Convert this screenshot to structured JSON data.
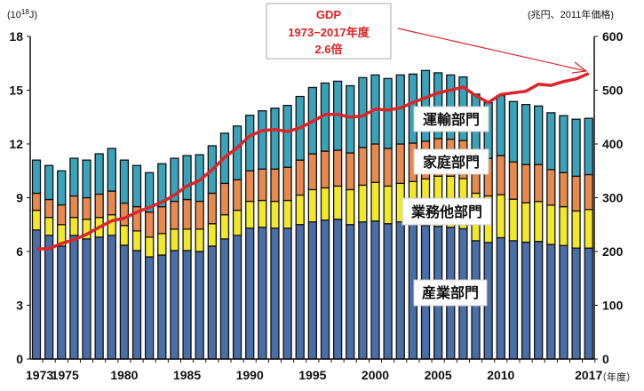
{
  "chart_data": {
    "type": "bar",
    "stacked": true,
    "left_unit": "(10",
    "left_unit_sup": "18",
    "left_unit_end": "J)",
    "right_unit": "(兆円、2011年価格)",
    "x_unit": "（年度）",
    "ylim": [
      0,
      18
    ],
    "yticks": [
      0,
      3,
      6,
      9,
      12,
      15,
      18
    ],
    "y2lim": [
      0,
      600
    ],
    "y2ticks": [
      0,
      100,
      200,
      300,
      400,
      500,
      600
    ],
    "xtick_labels": [
      "1973",
      "1975",
      "1980",
      "1985",
      "1990",
      "1995",
      "2000",
      "2005",
      "2010",
      "2017"
    ],
    "x": [
      1973,
      1974,
      1975,
      1976,
      1977,
      1978,
      1979,
      1980,
      1981,
      1982,
      1983,
      1984,
      1985,
      1986,
      1987,
      1988,
      1989,
      1990,
      1991,
      1992,
      1993,
      1994,
      1995,
      1996,
      1997,
      1998,
      1999,
      2000,
      2001,
      2002,
      2003,
      2004,
      2005,
      2006,
      2007,
      2008,
      2009,
      2010,
      2011,
      2012,
      2013,
      2014,
      2015,
      2016,
      2017
    ],
    "series": [
      {
        "name": "産業部門",
        "color": "#4a6ea8",
        "values": [
          7.2,
          6.9,
          6.3,
          6.9,
          6.7,
          6.8,
          6.9,
          6.35,
          6.05,
          5.7,
          5.8,
          6.05,
          6.05,
          6.0,
          6.3,
          6.7,
          6.9,
          7.3,
          7.35,
          7.3,
          7.3,
          7.5,
          7.65,
          7.75,
          7.8,
          7.5,
          7.65,
          7.7,
          7.55,
          7.65,
          7.7,
          7.45,
          7.4,
          7.35,
          7.27,
          6.6,
          6.5,
          6.77,
          6.6,
          6.52,
          6.56,
          6.39,
          6.33,
          6.19,
          6.19
        ]
      },
      {
        "name": "業務他部門",
        "color": "#f2e82a",
        "values": [
          1.1,
          1.0,
          1.2,
          1.0,
          1.1,
          1.1,
          1.15,
          1.1,
          1.1,
          1.1,
          1.2,
          1.2,
          1.2,
          1.25,
          1.25,
          1.35,
          1.4,
          1.5,
          1.5,
          1.5,
          1.55,
          1.65,
          1.8,
          1.8,
          1.85,
          1.95,
          2.05,
          2.15,
          2.1,
          2.15,
          2.2,
          2.6,
          2.8,
          2.85,
          2.8,
          2.65,
          2.6,
          2.4,
          2.32,
          2.2,
          2.23,
          2.2,
          2.17,
          2.07,
          2.15
        ]
      },
      {
        "name": "家庭部門",
        "color": "#e8894e",
        "values": [
          0.95,
          1.0,
          1.1,
          1.2,
          1.2,
          1.3,
          1.32,
          1.25,
          1.35,
          1.4,
          1.5,
          1.55,
          1.65,
          1.55,
          1.7,
          1.75,
          1.7,
          1.7,
          1.75,
          1.8,
          1.85,
          1.95,
          2.0,
          2.05,
          2.0,
          2.05,
          2.1,
          2.15,
          2.1,
          2.2,
          2.15,
          2.1,
          2.1,
          2.07,
          2.12,
          2.1,
          2.1,
          2.18,
          2.08,
          2.13,
          2.06,
          1.98,
          1.9,
          1.94,
          1.95
        ]
      },
      {
        "name": "運輸部門",
        "color": "#3aa3b9",
        "values": [
          1.85,
          1.9,
          1.9,
          2.1,
          2.1,
          2.25,
          2.38,
          2.4,
          2.3,
          2.2,
          2.4,
          2.4,
          2.45,
          2.6,
          2.65,
          2.8,
          3.0,
          3.1,
          3.25,
          3.4,
          3.45,
          3.55,
          3.7,
          3.8,
          3.85,
          3.75,
          3.9,
          3.85,
          3.9,
          3.85,
          3.85,
          3.95,
          3.67,
          3.58,
          3.55,
          3.43,
          3.1,
          3.35,
          3.37,
          3.35,
          3.27,
          3.17,
          3.18,
          3.18,
          3.14
        ]
      }
    ],
    "line": {
      "name": "GDP",
      "axis": "right",
      "color": "#d9262b",
      "values": [
        205,
        205,
        215,
        222,
        232,
        245,
        257,
        262,
        273,
        282,
        292,
        305,
        322,
        332,
        352,
        375,
        393,
        415,
        425,
        427,
        423,
        430,
        442,
        455,
        455,
        450,
        452,
        465,
        463,
        467,
        477,
        486,
        495,
        500,
        506,
        490,
        477,
        492,
        495,
        498,
        511,
        509,
        516,
        521,
        531
      ]
    },
    "annotation": {
      "line1": "GDP",
      "line2": "1973−2017年度",
      "line3": "2.6倍"
    },
    "labels": {
      "transport": "運輸部門",
      "residential": "家庭部門",
      "commercial": "業務他部門",
      "industrial": "産業部門"
    }
  }
}
